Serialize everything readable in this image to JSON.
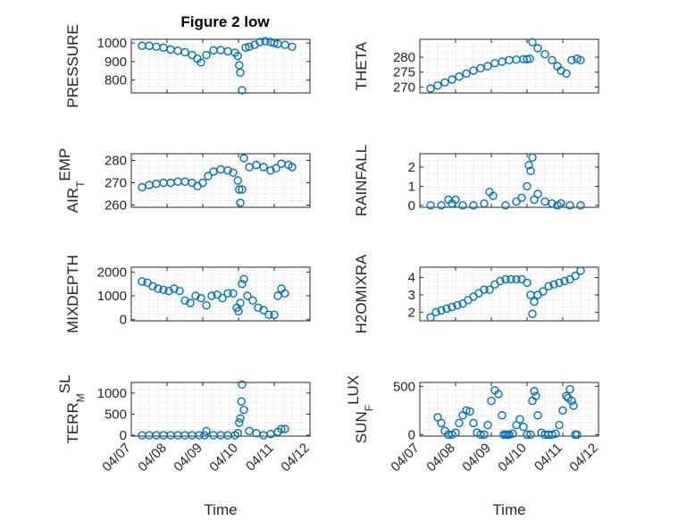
{
  "figure_title": "Figure 2 low",
  "chart_data": [
    {
      "type": "scatter",
      "title": "Figure 2 low",
      "ylabel_main": "PRESSURE",
      "ylabel_sub": "",
      "ylim": [
        730,
        1020
      ],
      "yticks": [
        800,
        900,
        1000
      ],
      "yticklabels": [
        "800",
        "900",
        "1000"
      ],
      "xlim": [
        0,
        5
      ],
      "xticklabels": [],
      "xlabel": "",
      "x": [
        0.3,
        0.5,
        0.7,
        0.9,
        1.1,
        1.3,
        1.5,
        1.7,
        1.85,
        1.95,
        2.1,
        2.3,
        2.5,
        2.7,
        2.9,
        2.98,
        3.02,
        3.05,
        3.1,
        3.2,
        3.3,
        3.45,
        3.6,
        3.75,
        3.9,
        4.0,
        4.1,
        4.3,
        4.5
      ],
      "y": [
        985,
        985,
        980,
        975,
        965,
        958,
        950,
        935,
        915,
        895,
        935,
        960,
        962,
        955,
        948,
        930,
        880,
        840,
        745,
        975,
        980,
        990,
        1005,
        1010,
        1005,
        1000,
        995,
        990,
        980
      ]
    },
    {
      "type": "scatter",
      "ylabel_main": "THETA",
      "ylabel_sub": "",
      "ylim": [
        268,
        286
      ],
      "yticks": [
        270,
        275,
        280
      ],
      "yticklabels": [
        "270",
        "275",
        "280"
      ],
      "xlim": [
        0,
        5
      ],
      "xticklabels": [],
      "xlabel": "",
      "x": [
        0.3,
        0.5,
        0.7,
        0.9,
        1.1,
        1.3,
        1.5,
        1.7,
        1.9,
        2.1,
        2.3,
        2.5,
        2.7,
        2.9,
        3.0,
        3.08,
        3.15,
        3.3,
        3.5,
        3.7,
        3.85,
        3.95,
        4.1,
        4.25,
        4.4,
        4.5
      ],
      "y": [
        269.5,
        270.5,
        271.5,
        272.5,
        273.5,
        274.5,
        275.5,
        276.3,
        277,
        278,
        278.5,
        279,
        279.2,
        279.3,
        279.3,
        279.5,
        285,
        283,
        281,
        279,
        277,
        275.5,
        274.5,
        279,
        279.5,
        279
      ]
    },
    {
      "type": "scatter",
      "ylabel_main": "AIR",
      "ylabel_sub": "T",
      "ylabel_tail": "EMP",
      "ylim": [
        259,
        283
      ],
      "yticks": [
        260,
        270,
        280
      ],
      "yticklabels": [
        "260",
        "270",
        "280"
      ],
      "xlim": [
        0,
        5
      ],
      "xticklabels": [],
      "xlabel": "",
      "x": [
        0.3,
        0.5,
        0.7,
        0.9,
        1.1,
        1.3,
        1.5,
        1.7,
        1.85,
        2.0,
        2.15,
        2.3,
        2.5,
        2.7,
        2.85,
        2.98,
        3.02,
        3.05,
        3.1,
        3.15,
        3.3,
        3.5,
        3.7,
        3.9,
        4.05,
        4.2,
        4.4,
        4.5
      ],
      "y": [
        268,
        269,
        269.5,
        270,
        270,
        270.5,
        270.5,
        270,
        268.5,
        270,
        273,
        275,
        276,
        275.5,
        274.5,
        271,
        267,
        261,
        267,
        281,
        277,
        278,
        277,
        275.5,
        276.5,
        278.5,
        278,
        277
      ]
    },
    {
      "type": "scatter",
      "ylabel_main": "RAINFALL",
      "ylabel_sub": "",
      "ylim": [
        -0.1,
        2.7
      ],
      "yticks": [
        0,
        1,
        2
      ],
      "yticklabels": [
        "0",
        "1",
        "2"
      ],
      "xlim": [
        0,
        5
      ],
      "xticklabels": [],
      "xlabel": "",
      "x": [
        0.3,
        0.6,
        0.8,
        0.9,
        1.0,
        1.2,
        1.5,
        1.8,
        1.95,
        2.05,
        2.4,
        2.7,
        2.85,
        3.0,
        3.05,
        3.1,
        3.15,
        3.2,
        3.3,
        3.5,
        3.7,
        3.85,
        3.95,
        4.2,
        4.5
      ],
      "y": [
        0,
        0,
        0.3,
        0.1,
        0.3,
        0,
        0,
        0.1,
        0.7,
        0.5,
        0,
        0.2,
        0.4,
        1.0,
        2.1,
        1.8,
        2.5,
        0.3,
        0.6,
        0.2,
        0.1,
        0,
        0.1,
        0,
        0
      ]
    },
    {
      "type": "scatter",
      "ylabel_main": "MIXDEPTH",
      "ylabel_sub": "",
      "ylim": [
        -50,
        2200
      ],
      "yticks": [
        0,
        1000,
        2000
      ],
      "yticklabels": [
        "0",
        "1000",
        "2000"
      ],
      "xlim": [
        0,
        5
      ],
      "xticklabels": [],
      "xlabel": "",
      "x": [
        0.3,
        0.45,
        0.6,
        0.75,
        0.9,
        1.05,
        1.2,
        1.35,
        1.5,
        1.65,
        1.8,
        1.95,
        2.1,
        2.25,
        2.4,
        2.55,
        2.7,
        2.85,
        2.95,
        3.0,
        3.05,
        3.1,
        3.15,
        3.25,
        3.4,
        3.55,
        3.7,
        3.85,
        4.0,
        4.1,
        4.2,
        4.3
      ],
      "y": [
        1600,
        1550,
        1400,
        1300,
        1250,
        1200,
        1300,
        1200,
        800,
        700,
        1000,
        900,
        600,
        1000,
        1050,
        900,
        1100,
        1100,
        500,
        350,
        700,
        1500,
        1700,
        1000,
        800,
        500,
        400,
        200,
        200,
        1000,
        1300,
        1100
      ]
    },
    {
      "type": "scatter",
      "ylabel_main": "H2OMIXRA",
      "ylabel_sub": "",
      "ylim": [
        1.5,
        4.6
      ],
      "yticks": [
        2,
        3,
        4
      ],
      "yticklabels": [
        "2",
        "3",
        "4"
      ],
      "xlim": [
        0,
        5
      ],
      "xticklabels": [],
      "xlabel": "",
      "x": [
        0.3,
        0.45,
        0.6,
        0.75,
        0.9,
        1.05,
        1.2,
        1.35,
        1.5,
        1.65,
        1.8,
        1.95,
        2.1,
        2.25,
        2.4,
        2.55,
        2.7,
        2.85,
        3.0,
        3.1,
        3.15,
        3.2,
        3.3,
        3.45,
        3.6,
        3.75,
        3.9,
        4.05,
        4.2,
        4.35,
        4.5
      ],
      "y": [
        1.7,
        2.0,
        2.1,
        2.2,
        2.3,
        2.4,
        2.5,
        2.7,
        2.9,
        3.1,
        3.3,
        3.3,
        3.6,
        3.8,
        3.9,
        3.9,
        3.9,
        3.9,
        3.7,
        3.0,
        1.9,
        2.6,
        3.0,
        3.2,
        3.5,
        3.6,
        3.7,
        3.8,
        3.9,
        4.1,
        4.4
      ]
    },
    {
      "type": "scatter",
      "ylabel_main": "TERR",
      "ylabel_sub": "M",
      "ylabel_tail": "SL",
      "ylim": [
        -20,
        1250
      ],
      "yticks": [
        0,
        500,
        1000
      ],
      "yticklabels": [
        "0",
        "500",
        "1000"
      ],
      "xlim": [
        0,
        5
      ],
      "xticklabels": [
        "04/07",
        "04/08",
        "04/09",
        "04/10",
        "04/11",
        "04/12"
      ],
      "xlabel": "Time",
      "x": [
        0.3,
        0.5,
        0.7,
        0.9,
        1.1,
        1.3,
        1.5,
        1.7,
        1.9,
        2.05,
        2.1,
        2.3,
        2.5,
        2.7,
        2.9,
        2.98,
        3.02,
        3.05,
        3.08,
        3.1,
        3.15,
        3.3,
        3.5,
        3.7,
        3.9,
        4.1,
        4.2,
        4.3
      ],
      "y": [
        0,
        0,
        0,
        0,
        0,
        0,
        0,
        0,
        0,
        0,
        100,
        0,
        0,
        0,
        0,
        50,
        300,
        400,
        800,
        1200,
        600,
        100,
        50,
        0,
        30,
        80,
        150,
        150
      ]
    },
    {
      "type": "scatter",
      "ylabel_main": "SUN",
      "ylabel_sub": "F",
      "ylabel_tail": "LUX",
      "ylim": [
        -15,
        540
      ],
      "yticks": [
        0,
        500
      ],
      "yticklabels": [
        "0",
        "500"
      ],
      "xlim": [
        0,
        5
      ],
      "xticklabels": [
        "04/07",
        "04/08",
        "04/09",
        "04/10",
        "04/11",
        "04/12"
      ],
      "xlabel": "Time",
      "x": [
        0.5,
        0.6,
        0.7,
        0.8,
        0.9,
        1.0,
        1.1,
        1.2,
        1.3,
        1.4,
        1.5,
        1.6,
        1.7,
        1.8,
        1.9,
        2.0,
        2.1,
        2.2,
        2.3,
        2.35,
        2.4,
        2.45,
        2.5,
        2.6,
        2.7,
        2.8,
        2.9,
        3.0,
        3.1,
        3.15,
        3.2,
        3.25,
        3.3,
        3.4,
        3.5,
        3.6,
        3.7,
        3.8,
        3.9,
        4.0,
        4.1,
        4.15,
        4.2,
        4.25,
        4.3,
        4.35,
        4.4
      ],
      "y": [
        180,
        120,
        40,
        0,
        0,
        20,
        120,
        200,
        250,
        240,
        120,
        20,
        0,
        0,
        100,
        350,
        460,
        420,
        200,
        0,
        0,
        0,
        0,
        10,
        100,
        160,
        80,
        0,
        0,
        350,
        450,
        400,
        200,
        20,
        0,
        0,
        0,
        10,
        100,
        250,
        400,
        380,
        470,
        350,
        300,
        0,
        0
      ]
    }
  ]
}
